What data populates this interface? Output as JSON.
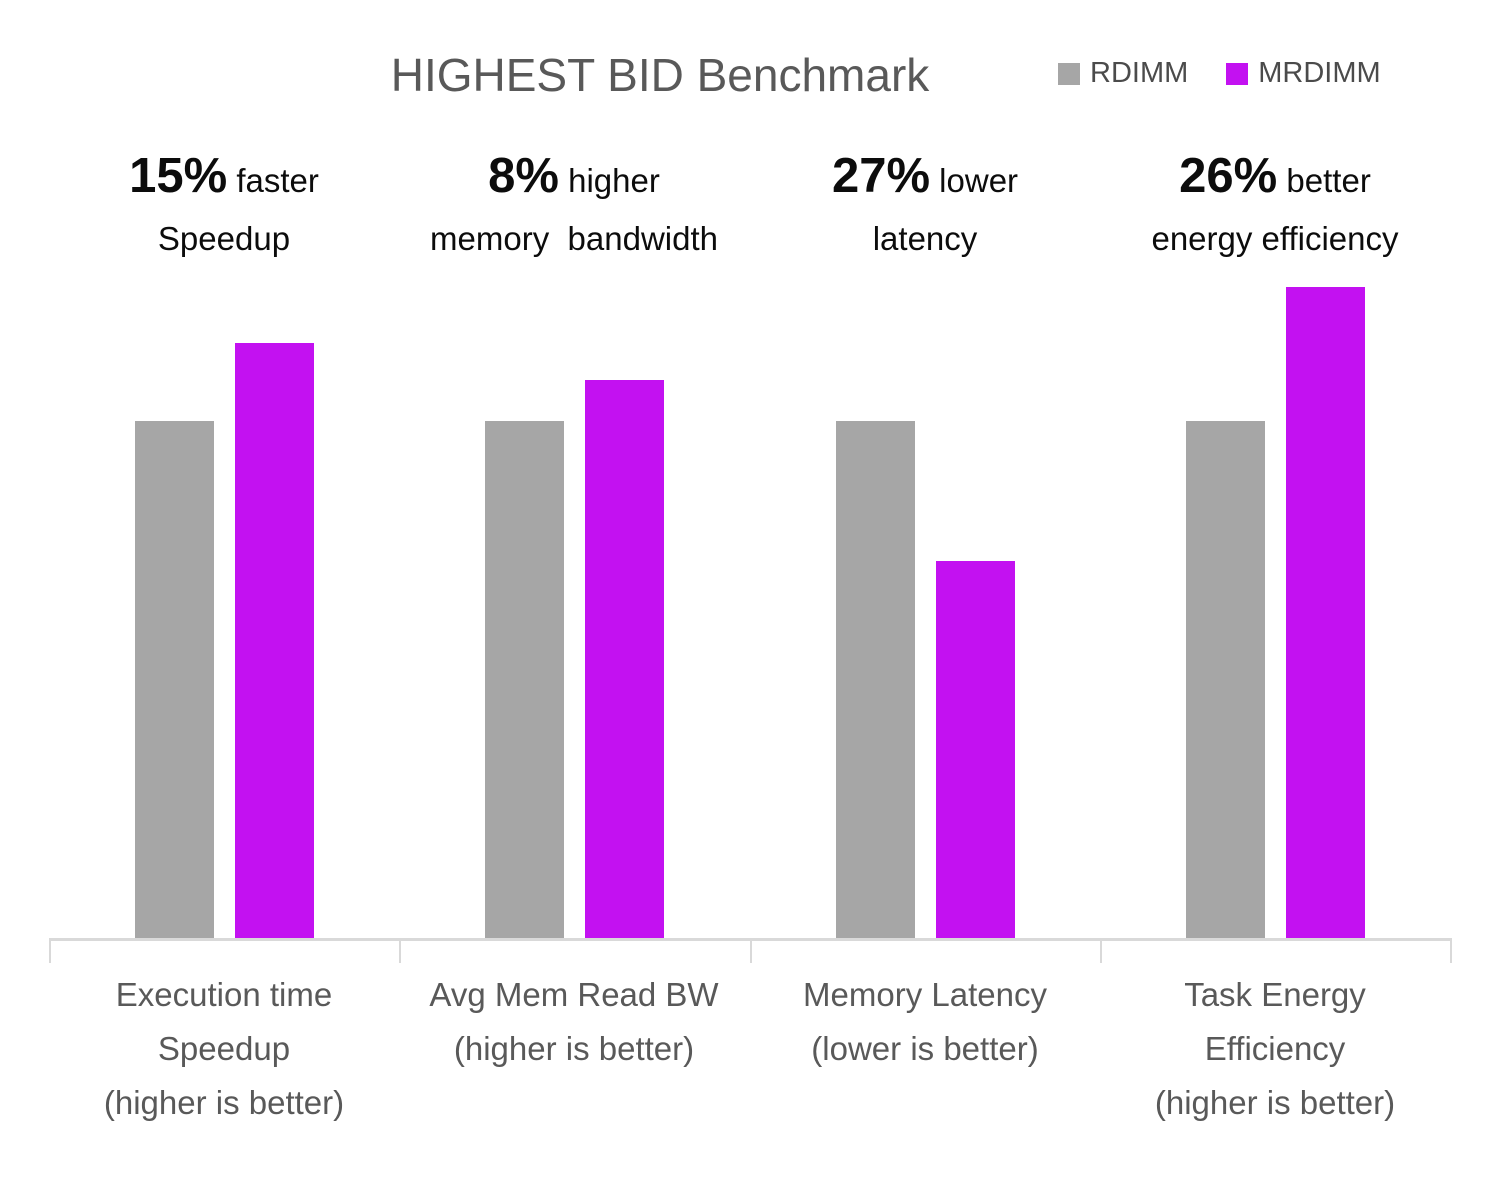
{
  "chart_data": {
    "type": "bar",
    "title": "HIGHEST BID Benchmark",
    "categories": [
      "Execution time Speedup (higher is better)",
      "Avg Mem Read BW (higher is better)",
      "Memory Latency (lower is better)",
      "Task Energy Efficiency (higher is better)"
    ],
    "category_lines": [
      [
        "Execution time",
        "Speedup",
        "(higher is better)"
      ],
      [
        "Avg Mem Read BW",
        "(higher is better)"
      ],
      [
        "Memory Latency",
        "(lower is better)"
      ],
      [
        "Task Energy",
        "Efficiency",
        "(higher is better)"
      ]
    ],
    "series": [
      {
        "name": "RDIMM",
        "color": "#A6A6A6",
        "values": [
          1.0,
          1.0,
          1.0,
          1.0
        ]
      },
      {
        "name": "MRDIMM",
        "color": "#C311F1",
        "values": [
          1.15,
          1.08,
          0.73,
          1.26
        ]
      }
    ],
    "annotations": [
      {
        "value": "15%",
        "suffix": "faster",
        "line2": "Speedup"
      },
      {
        "value": "8%",
        "suffix": "higher",
        "line2": "memory  bandwidth"
      },
      {
        "value": "27%",
        "suffix": "lower",
        "line2": "latency"
      },
      {
        "value": "26%",
        "suffix": "better",
        "line2": "energy efficiency"
      }
    ],
    "xlabel": "",
    "ylabel": "",
    "ylim": [
      0,
      1.3
    ],
    "grid": false,
    "legend_position": "top-right",
    "axis_color": "#D9D9D9",
    "text_color": "#595959",
    "annotation_color": "#0c0c0c"
  }
}
